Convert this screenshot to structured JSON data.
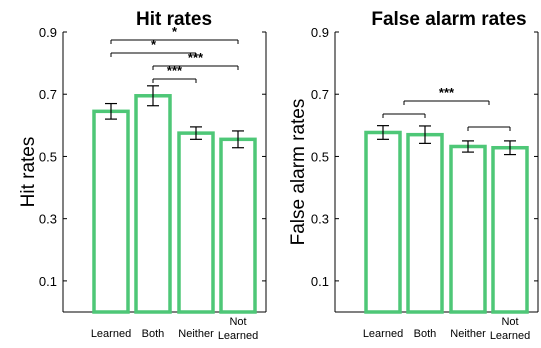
{
  "colors": {
    "bar_stroke": "#4ec777",
    "axis": "#000000",
    "background": "#ffffff"
  },
  "chart_data": [
    {
      "type": "bar",
      "title": "Hit rates",
      "xlabel": "",
      "ylabel": "Hit rates",
      "ylim": [
        0.0,
        0.9
      ],
      "yticks": [
        "0.1",
        "0.3",
        "0.5",
        "0.7",
        "0.9"
      ],
      "categories": [
        [
          "Learned"
        ],
        [
          "Both"
        ],
        [
          "Neither"
        ],
        [
          "Not",
          "Learned"
        ]
      ],
      "values": [
        0.645,
        0.695,
        0.575,
        0.555
      ],
      "errors": [
        0.025,
        0.032,
        0.02,
        0.027
      ],
      "significance": [
        {
          "from": 0,
          "to": 3,
          "label": "*"
        },
        {
          "from": 0,
          "to": 2,
          "label": "*"
        },
        {
          "from": 1,
          "to": 3,
          "label": "***"
        },
        {
          "from": 1,
          "to": 2,
          "label": "***"
        }
      ]
    },
    {
      "type": "bar",
      "title": "False alarm rates",
      "xlabel": "",
      "ylabel": "False alarm rates",
      "ylim": [
        0.0,
        0.9
      ],
      "yticks": [
        "0.1",
        "0.3",
        "0.5",
        "0.7",
        "0.9"
      ],
      "categories": [
        [
          "Learned"
        ],
        [
          "Both"
        ],
        [
          "Neither"
        ],
        [
          "Not",
          "Learned"
        ]
      ],
      "values": [
        0.577,
        0.57,
        0.532,
        0.528
      ],
      "errors": [
        0.022,
        0.028,
        0.018,
        0.022
      ],
      "significance": [
        {
          "from": 0,
          "to": 1,
          "label": ""
        },
        {
          "from": 2,
          "to": 3,
          "label": ""
        },
        {
          "from": 0.5,
          "to": 2.5,
          "label": "***"
        }
      ]
    }
  ]
}
